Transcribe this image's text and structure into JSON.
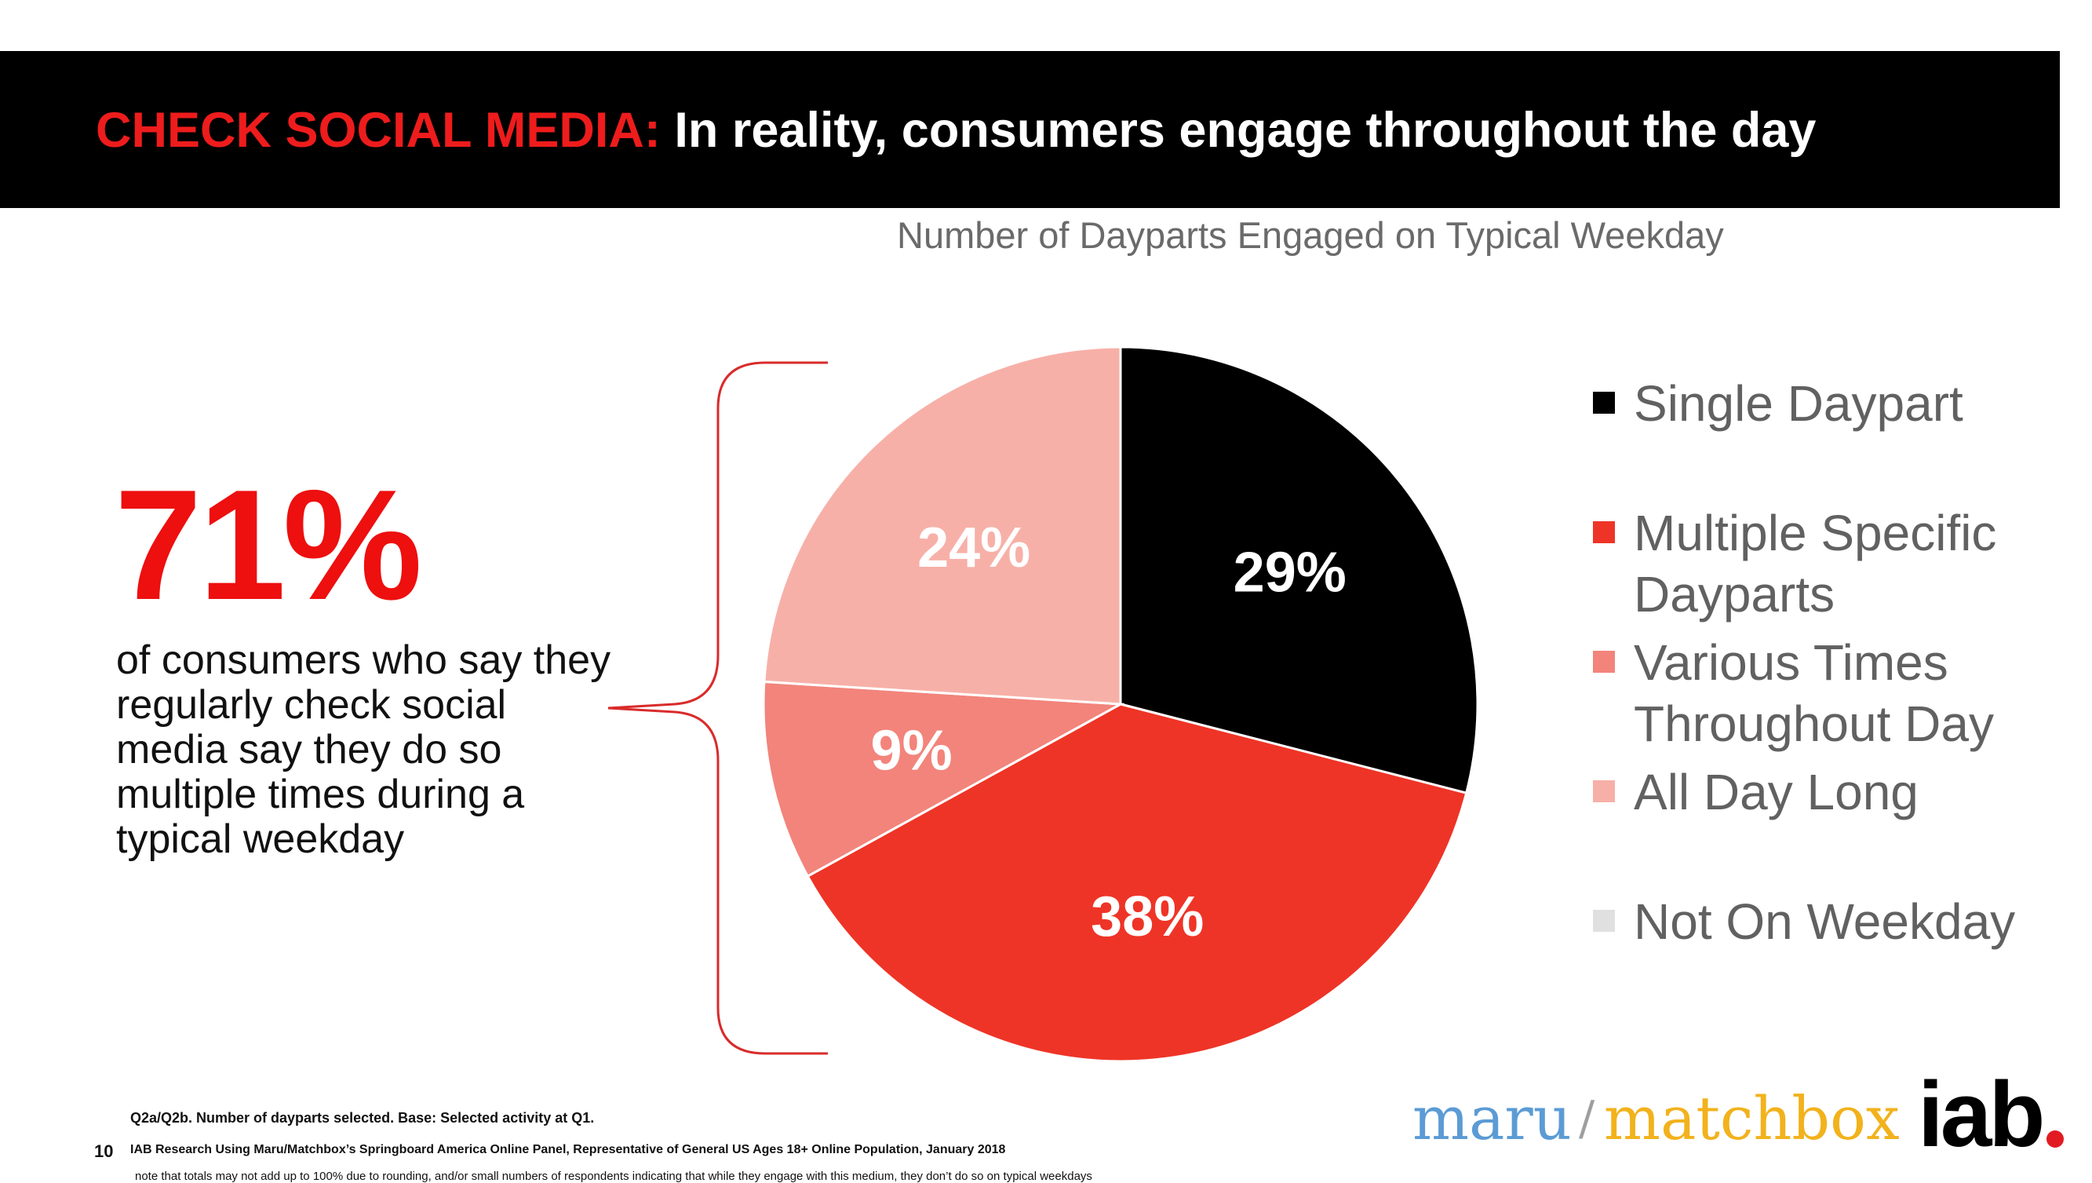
{
  "header": {
    "title_highlight": "CHECK SOCIAL MEDIA:",
    "title_rest": " In reality, consumers engage throughout the day"
  },
  "stat": {
    "value": "71%",
    "description": "of consumers who say they regularly check social media say they do so multiple times during a typical weekday"
  },
  "chart_data": {
    "type": "pie",
    "title": "Number of Dayparts Engaged on Typical Weekday",
    "categories": [
      "Single Daypart",
      "Multiple Specific Dayparts",
      "Various Times Throughout Day",
      "All Day Long",
      "Not On Weekday"
    ],
    "values": [
      29,
      38,
      9,
      24,
      0
    ],
    "data_labels": [
      "29%",
      "38%",
      "9%",
      "24%",
      ""
    ],
    "colors": [
      "#000000",
      "#ee3427",
      "#f2847b",
      "#f7b0a8",
      "#e0e0e0"
    ],
    "label_colors": [
      "#ffffff",
      "#ffffff",
      "#ffffff",
      "#ffffff",
      "#ffffff"
    ],
    "legend_position": "right"
  },
  "footnotes": {
    "page_number": "10",
    "line1": "Q2a/Q2b. Number of dayparts selected. Base: Selected activity at Q1.",
    "line2": "IAB Research Using Maru/Matchbox’s Springboard America Online Panel, Representative of General US Ages 18+ Online Population, January 2018",
    "line3": "note that totals may not add up to 100% due to rounding, and/or small numbers of respondents indicating that while they engage with this medium, they don’t do so on typical weekdays"
  },
  "logos": {
    "maru": "maru",
    "slash": "/",
    "matchbox": "matchbox",
    "iab": "iab"
  }
}
